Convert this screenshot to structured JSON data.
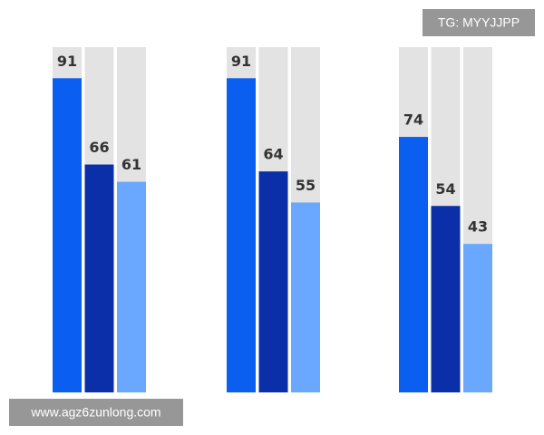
{
  "chart_data": {
    "type": "bar",
    "categories": [
      null,
      null,
      null
    ],
    "series": [
      {
        "color": "#0a5ef0",
        "values": [
          91,
          91,
          74
        ]
      },
      {
        "color": "#0a2fa8",
        "values": [
          66,
          64,
          54
        ]
      },
      {
        "color": "#6aa8ff",
        "values": [
          61,
          55,
          43
        ]
      }
    ],
    "track_color": "#e3e3e3",
    "ylim": [
      0,
      100
    ],
    "annotations": [
      "TG: MYYJJPP",
      "www.agz6zunlong.com"
    ]
  }
}
